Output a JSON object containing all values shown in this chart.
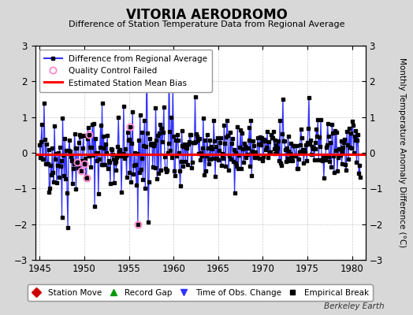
{
  "title": "VITORIA AERODROMO",
  "subtitle": "Difference of Station Temperature Data from Regional Average",
  "ylabel_right": "Monthly Temperature Anomaly Difference (°C)",
  "xlim": [
    1944.5,
    1981.5
  ],
  "ylim": [
    -3,
    3
  ],
  "yticks": [
    -3,
    -2,
    -1,
    0,
    1,
    2,
    3
  ],
  "xticks": [
    1945,
    1950,
    1955,
    1960,
    1965,
    1970,
    1975,
    1980
  ],
  "mean_bias": -0.05,
  "background_color": "#d8d8d8",
  "plot_bg_color": "#ffffff",
  "line_color": "#3333ff",
  "bias_line_color": "#ff0000",
  "marker_color": "#000000",
  "qc_failed_color": "#ff88cc",
  "watermark": "Berkeley Earth",
  "seed": 42
}
